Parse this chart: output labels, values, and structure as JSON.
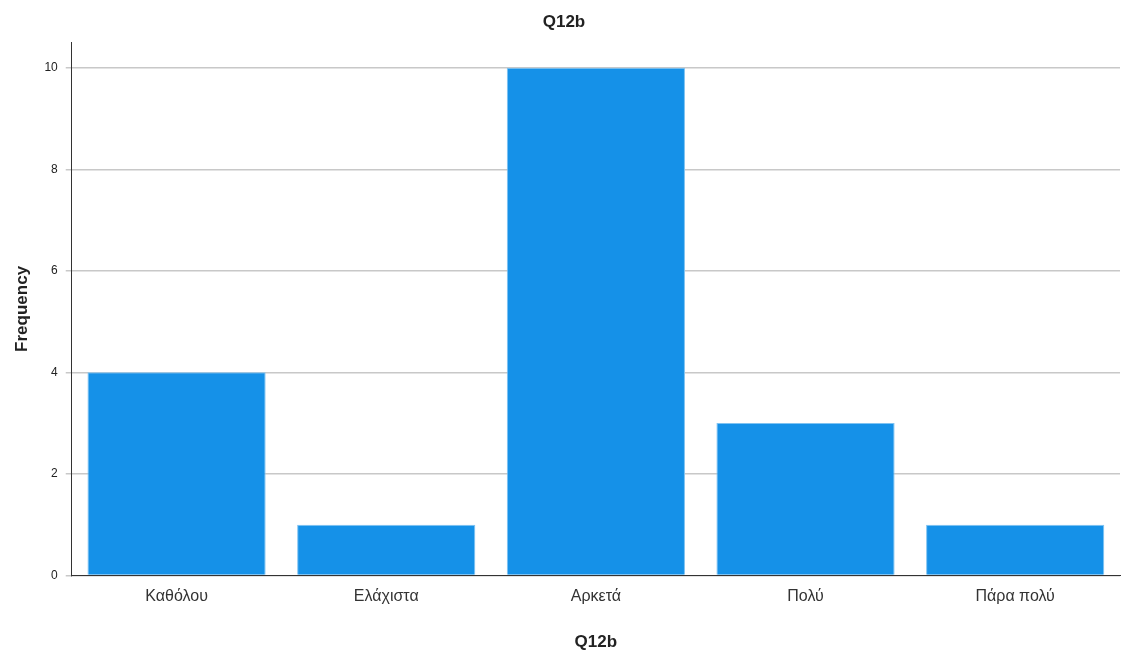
{
  "chart_data": {
    "type": "bar",
    "title": "Q12b",
    "xlabel": "Q12b",
    "ylabel": "Frequency",
    "categories": [
      "Καθόλου",
      "Ελάχιστα",
      "Αρκετά",
      "Πολύ",
      "Πάρα πολύ"
    ],
    "values": [
      4,
      1,
      10,
      3,
      1
    ],
    "color": "#1591e8",
    "ylim": [
      0,
      10.5
    ],
    "yticks": [
      0,
      2,
      4,
      6,
      8,
      10
    ],
    "grid": "y",
    "legend": false
  }
}
